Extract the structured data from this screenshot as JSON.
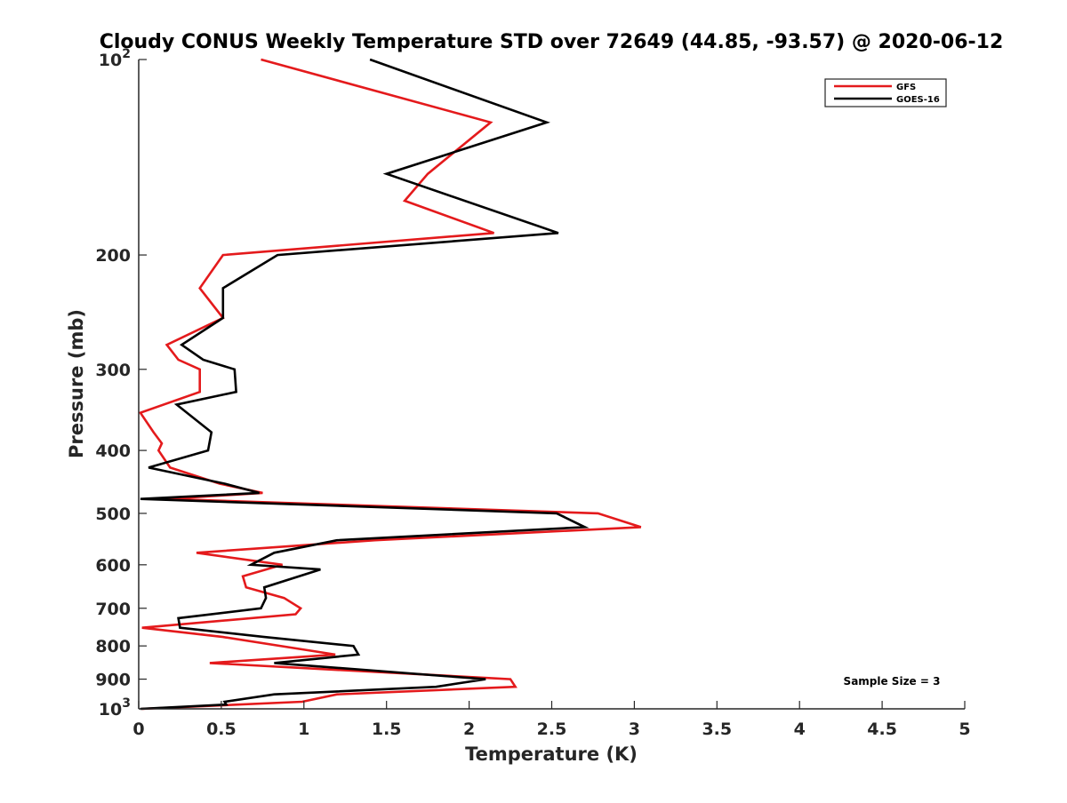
{
  "chart_data": {
    "type": "line",
    "title": "Cloudy CONUS Weekly Temperature STD over 72649 (44.85, -93.57) @ 2020-06-12",
    "xlabel": "Temperature (K)",
    "ylabel": "Pressure (mb)",
    "xlim": [
      0,
      5
    ],
    "ylim": [
      100,
      1000
    ],
    "y_scale": "log",
    "y_reversed": true,
    "grid": false,
    "legend_position": "top-right",
    "x_ticks": [
      "0",
      "0.5",
      "1",
      "1.5",
      "2",
      "2.5",
      "3",
      "3.5",
      "4",
      "4.5",
      "5"
    ],
    "y_ticks": [
      {
        "value": 100,
        "base": "10",
        "exp": "2"
      },
      {
        "value": 200,
        "label": "200"
      },
      {
        "value": 300,
        "label": "300"
      },
      {
        "value": 400,
        "label": "400"
      },
      {
        "value": 500,
        "label": "500"
      },
      {
        "value": 600,
        "label": "600"
      },
      {
        "value": 700,
        "label": "700"
      },
      {
        "value": 800,
        "label": "800"
      },
      {
        "value": 900,
        "label": "900"
      },
      {
        "value": 1000,
        "base": "10",
        "exp": "3"
      }
    ],
    "annotation": "Sample Size = 3",
    "series": [
      {
        "name": "GFS",
        "color": "#e41a1c",
        "points": [
          [
            0.74,
            100
          ],
          [
            2.13,
            125
          ],
          [
            1.75,
            150
          ],
          [
            1.61,
            165
          ],
          [
            2.15,
            185
          ],
          [
            0.51,
            200
          ],
          [
            0.37,
            225
          ],
          [
            0.51,
            250
          ],
          [
            0.17,
            275
          ],
          [
            0.24,
            290
          ],
          [
            0.37,
            300
          ],
          [
            0.37,
            325
          ],
          [
            0.01,
            350
          ],
          [
            0.09,
            375
          ],
          [
            0.14,
            390
          ],
          [
            0.12,
            400
          ],
          [
            0.19,
            425
          ],
          [
            0.49,
            450
          ],
          [
            0.75,
            465
          ],
          [
            0.17,
            475
          ],
          [
            2.78,
            500
          ],
          [
            3.04,
            525
          ],
          [
            1.43,
            550
          ],
          [
            0.35,
            575
          ],
          [
            0.87,
            600
          ],
          [
            0.63,
            625
          ],
          [
            0.65,
            650
          ],
          [
            0.88,
            675
          ],
          [
            0.98,
            700
          ],
          [
            0.95,
            715
          ],
          [
            0.02,
            750
          ],
          [
            0.51,
            775
          ],
          [
            1.19,
            825
          ],
          [
            0.43,
            850
          ],
          [
            2.25,
            900
          ],
          [
            2.28,
            925
          ],
          [
            1.2,
            950
          ],
          [
            0.99,
            975
          ],
          [
            0.02,
            1000
          ]
        ]
      },
      {
        "name": "GOES-16",
        "color": "#000000",
        "points": [
          [
            1.4,
            100
          ],
          [
            2.47,
            125
          ],
          [
            1.5,
            150
          ],
          [
            2.54,
            185
          ],
          [
            0.84,
            200
          ],
          [
            0.51,
            225
          ],
          [
            0.51,
            250
          ],
          [
            0.26,
            275
          ],
          [
            0.39,
            290
          ],
          [
            0.58,
            300
          ],
          [
            0.59,
            325
          ],
          [
            0.23,
            340
          ],
          [
            0.44,
            375
          ],
          [
            0.42,
            400
          ],
          [
            0.06,
            425
          ],
          [
            0.52,
            450
          ],
          [
            0.73,
            465
          ],
          [
            0.01,
            475
          ],
          [
            2.53,
            500
          ],
          [
            2.7,
            525
          ],
          [
            1.2,
            550
          ],
          [
            0.82,
            575
          ],
          [
            0.68,
            600
          ],
          [
            1.1,
            610
          ],
          [
            0.76,
            650
          ],
          [
            0.77,
            675
          ],
          [
            0.74,
            700
          ],
          [
            0.24,
            725
          ],
          [
            0.25,
            750
          ],
          [
            0.76,
            775
          ],
          [
            1.3,
            800
          ],
          [
            1.33,
            825
          ],
          [
            0.82,
            850
          ],
          [
            2.1,
            900
          ],
          [
            1.8,
            925
          ],
          [
            0.82,
            950
          ],
          [
            0.52,
            975
          ],
          [
            0.53,
            985
          ],
          [
            0.01,
            1000
          ]
        ]
      }
    ]
  }
}
